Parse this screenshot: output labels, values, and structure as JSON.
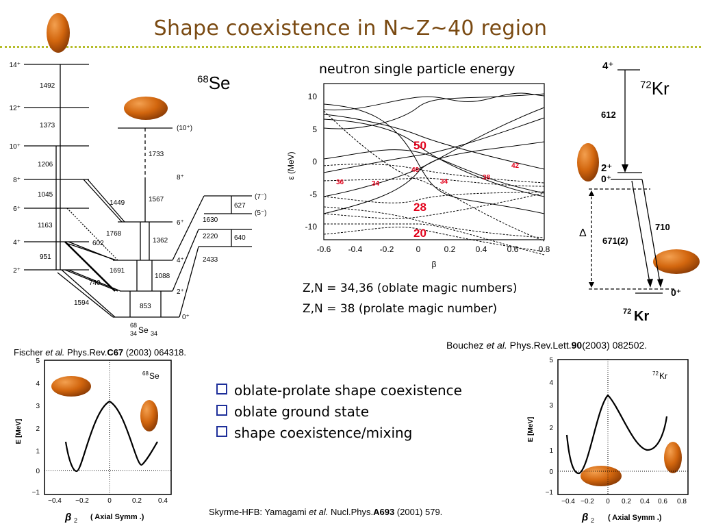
{
  "title": "Shape coexistence in N~Z~40 region",
  "colors": {
    "title": "#7a4a12",
    "divider": "#b6bd2a",
    "bullet_box": "#1e2f9a",
    "magic_label": "#e2001a",
    "ellipsoid": "#d2660e"
  },
  "se68": {
    "nucleus_mass": "68",
    "nucleus_symbol": "Se",
    "levels": {
      "gs": {
        "spin_labels": [
          "14⁺",
          "12⁺",
          "10⁺",
          "8⁺",
          "6⁺",
          "4⁺",
          "2⁺"
        ],
        "gammas": [
          "1492",
          "1373",
          "1206",
          "1045",
          "1163",
          "951"
        ]
      },
      "side": {
        "spin_labels": [
          "(10⁺)",
          "8⁺",
          "6⁺",
          "4⁺",
          "2⁺",
          "0⁺"
        ],
        "gammas": [
          "1733",
          "1567",
          "1362",
          "1088",
          "853",
          "1449",
          "1768",
          "602",
          "1691",
          "740",
          "1594"
        ]
      },
      "right": {
        "spin_labels": [
          "(7⁻)",
          "(5⁻)"
        ],
        "gammas": [
          "627",
          "640",
          "1630",
          "2220",
          "2433"
        ]
      }
    },
    "bottom_label": {
      "mass": "68",
      "z": "34",
      "symbol": "Se",
      "n": "34"
    },
    "reference": {
      "pre": "Fischer ",
      "etal": "et al.",
      "mid": " Phys.Rev.",
      "vol": "C67",
      "post": " (2003) 064318."
    },
    "pes": {
      "ylabel": "E   [MeV]",
      "xlabel": "( Axial Symm .)",
      "beta": "β",
      "beta_sub": "2",
      "label_mass": "68",
      "label_symbol": "Se",
      "yticks": [
        "5",
        "4",
        "3",
        "2",
        "1",
        "0",
        "−1"
      ],
      "xticks": [
        "−0.4",
        "−0.2",
        "0",
        "0.2",
        "0.4"
      ]
    }
  },
  "sp_chart": {
    "title": "neutron single particle energy",
    "ylabel": "ε (MeV)",
    "xlabel": "β",
    "yticks": [
      "10",
      "5",
      "0",
      "-5",
      "-10"
    ],
    "xticks": [
      "-0.6",
      "-0.4",
      "-0.2",
      "0",
      "0.2",
      "0.4",
      "0.6",
      "0.8"
    ],
    "magic_big": [
      "50",
      "28",
      "20"
    ],
    "magic_small": [
      "40",
      "36",
      "34",
      "34",
      "38",
      "42"
    ]
  },
  "magic_notes": [
    "Z,N = 34,36 (oblate magic numbers)",
    "Z,N = 38 (prolate magic number)"
  ],
  "kr72": {
    "nucleus_mass": "72",
    "nucleus_symbol": "Kr",
    "spin_labels": [
      "4⁺",
      "2⁺",
      "0⁺",
      "0⁺"
    ],
    "gammas": [
      "612",
      "710",
      "671(2)"
    ],
    "delta": "Δ",
    "bottom_label": {
      "mass": "72",
      "symbol": "Kr"
    },
    "reference": {
      "pre": "Bouchez ",
      "etal": "et al.",
      "mid": " Phys.Rev.Lett.",
      "vol": "90",
      "post": "(2003) 082502."
    },
    "pes": {
      "ylabel": "E   [MeV]",
      "xlabel": "( Axial Symm .)",
      "beta": "β",
      "beta_sub": "2",
      "label_mass": "72",
      "label_symbol": "Kr",
      "yticks": [
        "5",
        "4",
        "3",
        "2",
        "1",
        "0",
        "−1"
      ],
      "xticks": [
        "−0.4",
        "−0.2",
        "0",
        "0.2",
        "0.4",
        "0.6",
        "0.8"
      ]
    }
  },
  "bullets": [
    "oblate-prolate shape coexistence",
    "oblate ground state",
    "shape coexistence/mixing"
  ],
  "skyrme_ref": {
    "pre": "Skyrme-HFB: Yamagami ",
    "etal": "et al.",
    "mid": " Nucl.Phys.",
    "vol": "A693",
    "post": " (2001) 579."
  }
}
